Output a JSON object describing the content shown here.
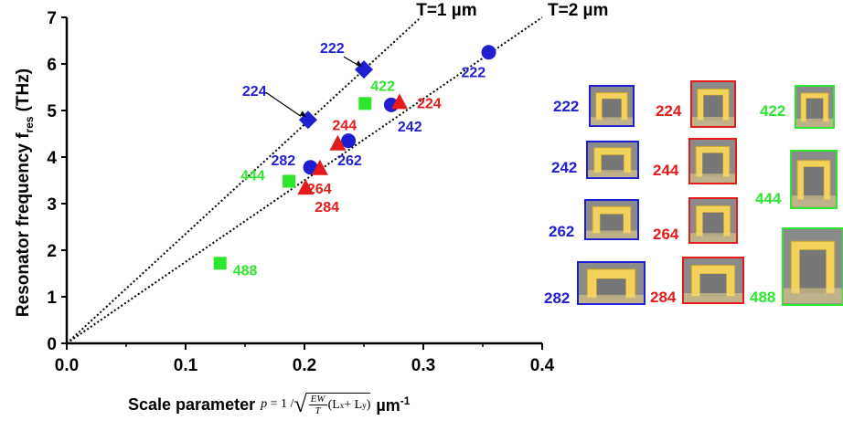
{
  "chart_data": {
    "type": "scatter",
    "ylabel_main": "Resonator frequency f",
    "ylabel_sub": "res",
    "ylabel_unit": "(THz)",
    "xlabel": {
      "prefix": "Scale parameter",
      "p": "p",
      "eq_left": "= 1 /",
      "frac_num": "EW",
      "frac_den": "T",
      "paren": "(L",
      "sub_x": "x",
      "plus": " + L",
      "sub_y": "y",
      "close": ")",
      "unit": "µm",
      "unit_exp": "-1"
    },
    "xlim": [
      0,
      0.4
    ],
    "ylim": [
      0,
      7
    ],
    "xticks": [
      "0.0",
      "0.1",
      "0.2",
      "0.3",
      "0.4"
    ],
    "yticks": [
      "0",
      "1",
      "2",
      "3",
      "4",
      "5",
      "6",
      "7"
    ],
    "colors": {
      "blue": "#1f1fd1",
      "red": "#e51b1b",
      "green": "#2ee62e"
    },
    "points": [
      {
        "x": 0.25,
        "y": 5.88,
        "marker": "diamond",
        "color": "blue",
        "label": "222"
      },
      {
        "x": 0.203,
        "y": 4.8,
        "marker": "diamond",
        "color": "blue",
        "label": "224"
      },
      {
        "x": 0.355,
        "y": 6.25,
        "marker": "circle",
        "color": "blue",
        "label": "222"
      },
      {
        "x": 0.273,
        "y": 5.12,
        "marker": "circle",
        "color": "blue",
        "label": "242"
      },
      {
        "x": 0.237,
        "y": 4.35,
        "marker": "circle",
        "color": "blue",
        "label": "262"
      },
      {
        "x": 0.205,
        "y": 3.78,
        "marker": "circle",
        "color": "blue",
        "label": "282"
      },
      {
        "x": 0.28,
        "y": 5.17,
        "marker": "triangle",
        "color": "red",
        "label": "224"
      },
      {
        "x": 0.228,
        "y": 4.28,
        "marker": "triangle",
        "color": "red",
        "label": "244"
      },
      {
        "x": 0.213,
        "y": 3.75,
        "marker": "triangle",
        "color": "red",
        "label": "264"
      },
      {
        "x": 0.201,
        "y": 3.33,
        "marker": "triangle",
        "color": "red",
        "label": "284"
      },
      {
        "x": 0.251,
        "y": 5.15,
        "marker": "square",
        "color": "green",
        "label": "422"
      },
      {
        "x": 0.187,
        "y": 3.48,
        "marker": "square",
        "color": "green",
        "label": "444"
      },
      {
        "x": 0.129,
        "y": 1.72,
        "marker": "square",
        "color": "green",
        "label": "488"
      }
    ],
    "lines": [
      {
        "label": "T=1 µm",
        "slope": 23.5
      },
      {
        "label": "T=2 µm",
        "slope": 17.5
      }
    ]
  },
  "thumbnails": [
    {
      "label": "222",
      "color": "blue"
    },
    {
      "label": "242",
      "color": "blue"
    },
    {
      "label": "262",
      "color": "blue"
    },
    {
      "label": "282",
      "color": "blue"
    },
    {
      "label": "224",
      "color": "red"
    },
    {
      "label": "244",
      "color": "red"
    },
    {
      "label": "264",
      "color": "red"
    },
    {
      "label": "284",
      "color": "red"
    },
    {
      "label": "422",
      "color": "green"
    },
    {
      "label": "444",
      "color": "green"
    },
    {
      "label": "488",
      "color": "green"
    }
  ]
}
